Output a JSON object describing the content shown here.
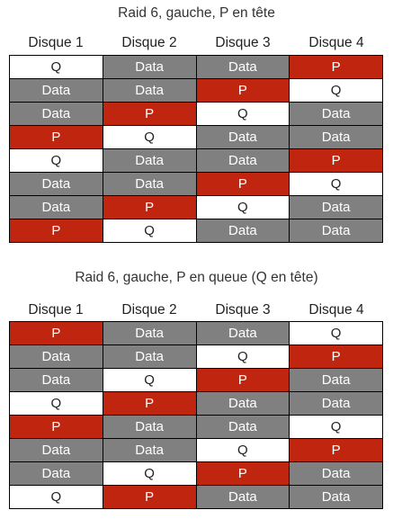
{
  "colors": {
    "data": "#808080",
    "p": "#c0260f",
    "q": "#ffffff"
  },
  "diagrams": [
    {
      "title": "Raid 6, gauche, P en tête",
      "headers": [
        "Disque 1",
        "Disque 2",
        "Disque 3",
        "Disque 4"
      ],
      "rows": [
        [
          "Q",
          "Data",
          "Data",
          "P"
        ],
        [
          "Data",
          "Data",
          "P",
          "Q"
        ],
        [
          "Data",
          "P",
          "Q",
          "Data"
        ],
        [
          "P",
          "Q",
          "Data",
          "Data"
        ],
        [
          "Q",
          "Data",
          "Data",
          "P"
        ],
        [
          "Data",
          "Data",
          "P",
          "Q"
        ],
        [
          "Data",
          "P",
          "Q",
          "Data"
        ],
        [
          "P",
          "Q",
          "Data",
          "Data"
        ]
      ]
    },
    {
      "title": "Raid 6, gauche, P en queue (Q en tête)",
      "headers": [
        "Disque 1",
        "Disque 2",
        "Disque 3",
        "Disque 4"
      ],
      "rows": [
        [
          "P",
          "Data",
          "Data",
          "Q"
        ],
        [
          "Data",
          "Data",
          "Q",
          "P"
        ],
        [
          "Data",
          "Q",
          "P",
          "Data"
        ],
        [
          "Q",
          "P",
          "Data",
          "Data"
        ],
        [
          "P",
          "Data",
          "Data",
          "Q"
        ],
        [
          "Data",
          "Data",
          "Q",
          "P"
        ],
        [
          "Data",
          "Q",
          "P",
          "Data"
        ],
        [
          "Q",
          "P",
          "Data",
          "Data"
        ]
      ]
    }
  ]
}
